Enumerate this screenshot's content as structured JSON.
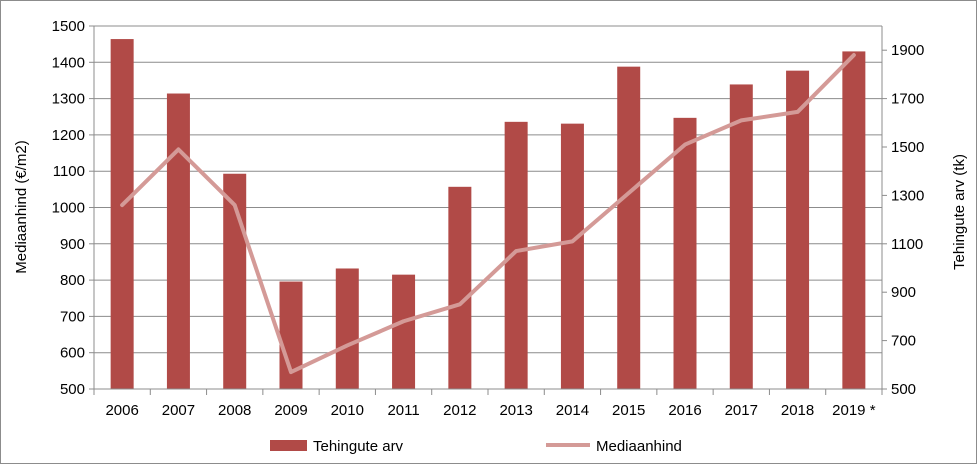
{
  "chart_data": {
    "type": "bar",
    "categories": [
      "2006",
      "2007",
      "2008",
      "2009",
      "2010",
      "2011",
      "2012",
      "2013",
      "2014",
      "2015",
      "2016",
      "2017",
      "2018",
      "2019 *"
    ],
    "series": [
      {
        "name": "Tehingute arv",
        "type": "bar",
        "axis": "left",
        "color": "#B14A47",
        "values": [
          1464,
          1314,
          1093,
          796,
          832,
          815,
          1057,
          1236,
          1231,
          1388,
          1247,
          1339,
          1377,
          1430
        ]
      },
      {
        "name": "Mediaanhind",
        "type": "line",
        "axis": "right",
        "color": "#D49A97",
        "values": [
          1260,
          1490,
          1260,
          570,
          680,
          780,
          850,
          1070,
          1110,
          1310,
          1510,
          1610,
          1645,
          1880
        ]
      }
    ],
    "ylabel": "Mediaanhind (€/m2)",
    "ylabel_right": "Tehingute arv (tk)",
    "ylim": [
      500,
      1500
    ],
    "yticks": [
      "500",
      "600",
      "700",
      "800",
      "900",
      "1000",
      "1100",
      "1200",
      "1300",
      "1400",
      "1500"
    ],
    "ylim_right": [
      500,
      2000
    ],
    "yticks_right": [
      "500",
      "700",
      "900",
      "1100",
      "1300",
      "1500",
      "1700",
      "1900"
    ],
    "grid": true,
    "legend_position": "bottom"
  }
}
